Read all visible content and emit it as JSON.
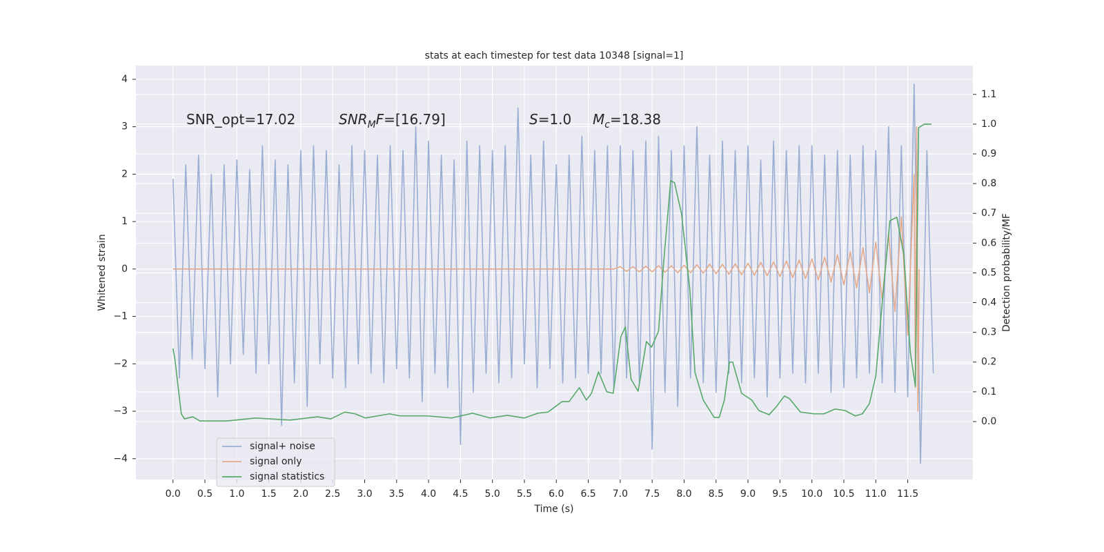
{
  "chart_data": {
    "type": "line",
    "title": "stats at each timestep for test data 10348 [signal=1]",
    "xlabel": "Time (s)",
    "ylabel": "Whitened strain",
    "y2label": "Detection probability/MF",
    "annotations": [
      "SNR_opt=17.02",
      [
        "SNR",
        "M",
        "F",
        "=[16.79]"
      ],
      [
        "S",
        "=1.0"
      ],
      [
        "M",
        "c",
        "=18.38"
      ]
    ],
    "grid": true,
    "legend": "lower left",
    "xlim": [
      -0.58,
      12.52
    ],
    "ylim": [
      -4.44,
      4.29
    ],
    "y2lim": [
      -0.195,
      1.197
    ],
    "xticks": [
      {
        "value": 0,
        "label": "0.0"
      },
      0.5,
      {
        "value": 1,
        "label": "1.0"
      },
      1.5,
      {
        "value": 2,
        "label": "2.0"
      },
      2.5,
      {
        "value": 3,
        "label": "3.0"
      },
      3.5,
      {
        "value": 4,
        "label": "4.0"
      },
      4.5,
      {
        "value": 5,
        "label": "5.0"
      },
      5.5,
      {
        "value": 6,
        "label": "6.0"
      },
      6.5,
      {
        "value": 7,
        "label": "7.0"
      },
      7.5,
      {
        "value": 8,
        "label": "8.0"
      },
      8.5,
      {
        "value": 9,
        "label": "9.0"
      },
      9.5,
      {
        "value": 10,
        "label": "10.0"
      },
      10.5,
      {
        "value": 11,
        "label": "11.0"
      },
      11.5
    ],
    "yticks": [
      {
        "value": -4,
        "label": "−4"
      },
      {
        "value": -3,
        "label": "−3"
      },
      {
        "value": -2,
        "label": "−2"
      },
      {
        "value": -1,
        "label": "−1"
      },
      0,
      1,
      2,
      3,
      4
    ],
    "y2ticks": [
      {
        "value": 0,
        "label": "0.0"
      },
      0.1,
      0.2,
      0.3,
      0.4,
      0.5,
      0.6,
      0.7,
      0.8,
      0.9,
      {
        "value": 1,
        "label": "1.0"
      },
      1.1
    ],
    "series": [
      {
        "name": "signal+ noise",
        "color": "#9aaed3",
        "x": [
          0,
          0.1,
          0.2,
          0.3,
          0.4,
          0.5,
          0.6,
          0.7,
          0.8,
          0.9,
          1,
          1.1,
          1.2,
          1.3,
          1.4,
          1.5,
          1.6,
          1.7,
          1.8,
          1.9,
          2,
          2.1,
          2.2,
          2.3,
          2.4,
          2.5,
          2.6,
          2.7,
          2.8,
          2.9,
          3,
          3.1,
          3.2,
          3.3,
          3.4,
          3.5,
          3.6,
          3.7,
          3.8,
          3.9,
          4,
          4.1,
          4.2,
          4.3,
          4.4,
          4.5,
          4.6,
          4.7,
          4.8,
          4.9,
          5,
          5.1,
          5.2,
          5.3,
          5.4,
          5.5,
          5.6,
          5.7,
          5.8,
          5.9,
          6,
          6.1,
          6.2,
          6.3,
          6.4,
          6.5,
          6.6,
          6.7,
          6.8,
          6.9,
          7,
          7.1,
          7.2,
          7.3,
          7.4,
          7.5,
          7.6,
          7.7,
          7.8,
          7.9,
          8,
          8.1,
          8.2,
          8.3,
          8.4,
          8.5,
          8.6,
          8.7,
          8.8,
          8.9,
          9,
          9.1,
          9.2,
          9.3,
          9.4,
          9.5,
          9.6,
          9.7,
          9.8,
          9.9,
          10,
          10.1,
          10.2,
          10.3,
          10.4,
          10.5,
          10.6,
          10.7,
          10.8,
          10.9,
          11,
          11.1,
          11.2,
          11.3,
          11.4,
          11.5,
          11.6,
          11.7,
          11.8,
          11.9
        ],
        "values": [
          1.9,
          -2.3,
          2.2,
          -1.9,
          2.4,
          -2.1,
          2.0,
          -2.7,
          2.2,
          -2.0,
          2.3,
          -1.8,
          2.1,
          -2.2,
          2.6,
          -2.0,
          2.3,
          -3.3,
          2.2,
          -2.4,
          2.5,
          -2.9,
          2.6,
          -2.0,
          2.5,
          -2.3,
          2.2,
          -2.5,
          2.6,
          -2.0,
          2.5,
          -2.2,
          2.4,
          -2.4,
          2.6,
          -2.1,
          2.5,
          -2.3,
          3.0,
          -2.8,
          2.7,
          -2.2,
          2.4,
          -2.5,
          2.3,
          -3.7,
          2.7,
          -2.6,
          2.6,
          -2.2,
          2.5,
          -2.4,
          2.6,
          -2.3,
          3.4,
          -2.0,
          2.4,
          -2.5,
          2.7,
          -2.1,
          2.2,
          -2.4,
          2.4,
          -2.3,
          2.8,
          -2.2,
          2.5,
          -2.2,
          2.6,
          -2.5,
          2.6,
          -2.3,
          2.5,
          -2.4,
          2.7,
          -3.8,
          2.8,
          -2.6,
          2.5,
          -2.9,
          2.6,
          -2.3,
          3.0,
          -2.4,
          2.4,
          -2.6,
          2.7,
          -2.2,
          2.5,
          -2.4,
          2.6,
          -2.3,
          2.3,
          -2.7,
          2.7,
          -2.3,
          2.5,
          -2.2,
          2.6,
          -2.4,
          2.6,
          -2.2,
          2.4,
          -2.6,
          2.5,
          -2.5,
          2.4,
          -2.3,
          2.6,
          -2.2,
          2.5,
          -2.4,
          3.0,
          -2.6,
          2.6,
          -2.7,
          3.9,
          -4.1,
          2.5,
          -2.2
        ]
      },
      {
        "name": "signal only",
        "color": "#e4a98a",
        "x": [
          0,
          6.9,
          7,
          7.1,
          7.2,
          7.3,
          7.4,
          7.5,
          7.6,
          7.7,
          7.8,
          7.9,
          8,
          8.1,
          8.2,
          8.3,
          8.4,
          8.5,
          8.6,
          8.7,
          8.8,
          8.9,
          9,
          9.1,
          9.2,
          9.3,
          9.4,
          9.5,
          9.6,
          9.7,
          9.8,
          9.9,
          10,
          10.1,
          10.2,
          10.3,
          10.4,
          10.5,
          10.6,
          10.7,
          10.8,
          10.9,
          11,
          11.1,
          11.2,
          11.3,
          11.4,
          11.5,
          11.6,
          11.62,
          11.64,
          11.66,
          11.68
        ],
        "values": [
          0,
          0,
          0.05,
          -0.05,
          0.05,
          -0.06,
          0.06,
          -0.06,
          0.07,
          -0.07,
          0.07,
          -0.08,
          0.08,
          -0.08,
          0.09,
          -0.09,
          0.1,
          -0.1,
          0.1,
          -0.11,
          0.11,
          -0.12,
          0.12,
          -0.13,
          0.14,
          -0.14,
          0.15,
          -0.16,
          0.17,
          -0.18,
          0.19,
          -0.2,
          0.21,
          -0.23,
          0.25,
          -0.27,
          0.3,
          -0.33,
          0.36,
          -0.4,
          0.45,
          -0.5,
          0.57,
          -0.65,
          0.75,
          -0.9,
          1.1,
          -1.4,
          2.0,
          -2.5,
          3.0,
          -3.0,
          0
        ]
      },
      {
        "name": "signal statistics",
        "color": "#55a868",
        "axis": "y2",
        "x": [
          0,
          0.03,
          0.13,
          0.18,
          0.31,
          0.42,
          0.85,
          1.29,
          1.83,
          2.26,
          2.47,
          2.69,
          2.85,
          3.01,
          3.39,
          3.55,
          3.98,
          4.36,
          4.69,
          4.96,
          5.23,
          5.5,
          5.71,
          5.87,
          6.09,
          6.2,
          6.36,
          6.47,
          6.55,
          6.66,
          6.79,
          6.89,
          7.01,
          7.08,
          7.17,
          7.28,
          7.41,
          7.49,
          7.6,
          7.68,
          7.79,
          7.85,
          7.96,
          8.09,
          8.17,
          8.3,
          8.47,
          8.55,
          8.63,
          8.71,
          8.76,
          8.9,
          9.06,
          9.17,
          9.33,
          9.44,
          9.57,
          9.65,
          9.82,
          10.03,
          10.19,
          10.36,
          10.52,
          10.68,
          10.79,
          10.9,
          11.0,
          11.11,
          11.22,
          11.33,
          11.44,
          11.54,
          11.62,
          11.67,
          11.76,
          11.87
        ],
        "values": [
          0.246,
          0.21,
          0.026,
          0.009,
          0.016,
          0.002,
          0.002,
          0.012,
          0.005,
          0.016,
          0.009,
          0.032,
          0.026,
          0.012,
          0.026,
          0.019,
          0.019,
          0.012,
          0.028,
          0.012,
          0.021,
          0.012,
          0.028,
          0.032,
          0.067,
          0.067,
          0.114,
          0.072,
          0.095,
          0.167,
          0.1,
          0.095,
          0.285,
          0.318,
          0.142,
          0.102,
          0.269,
          0.25,
          0.304,
          0.536,
          0.81,
          0.803,
          0.698,
          0.443,
          0.165,
          0.072,
          0.014,
          0.014,
          0.072,
          0.2,
          0.2,
          0.095,
          0.072,
          0.037,
          0.023,
          0.049,
          0.086,
          0.077,
          0.032,
          0.026,
          0.026,
          0.042,
          0.037,
          0.019,
          0.026,
          0.06,
          0.153,
          0.42,
          0.675,
          0.687,
          0.559,
          0.234,
          0.118,
          0.988,
          1.0,
          1.0
        ]
      }
    ]
  }
}
